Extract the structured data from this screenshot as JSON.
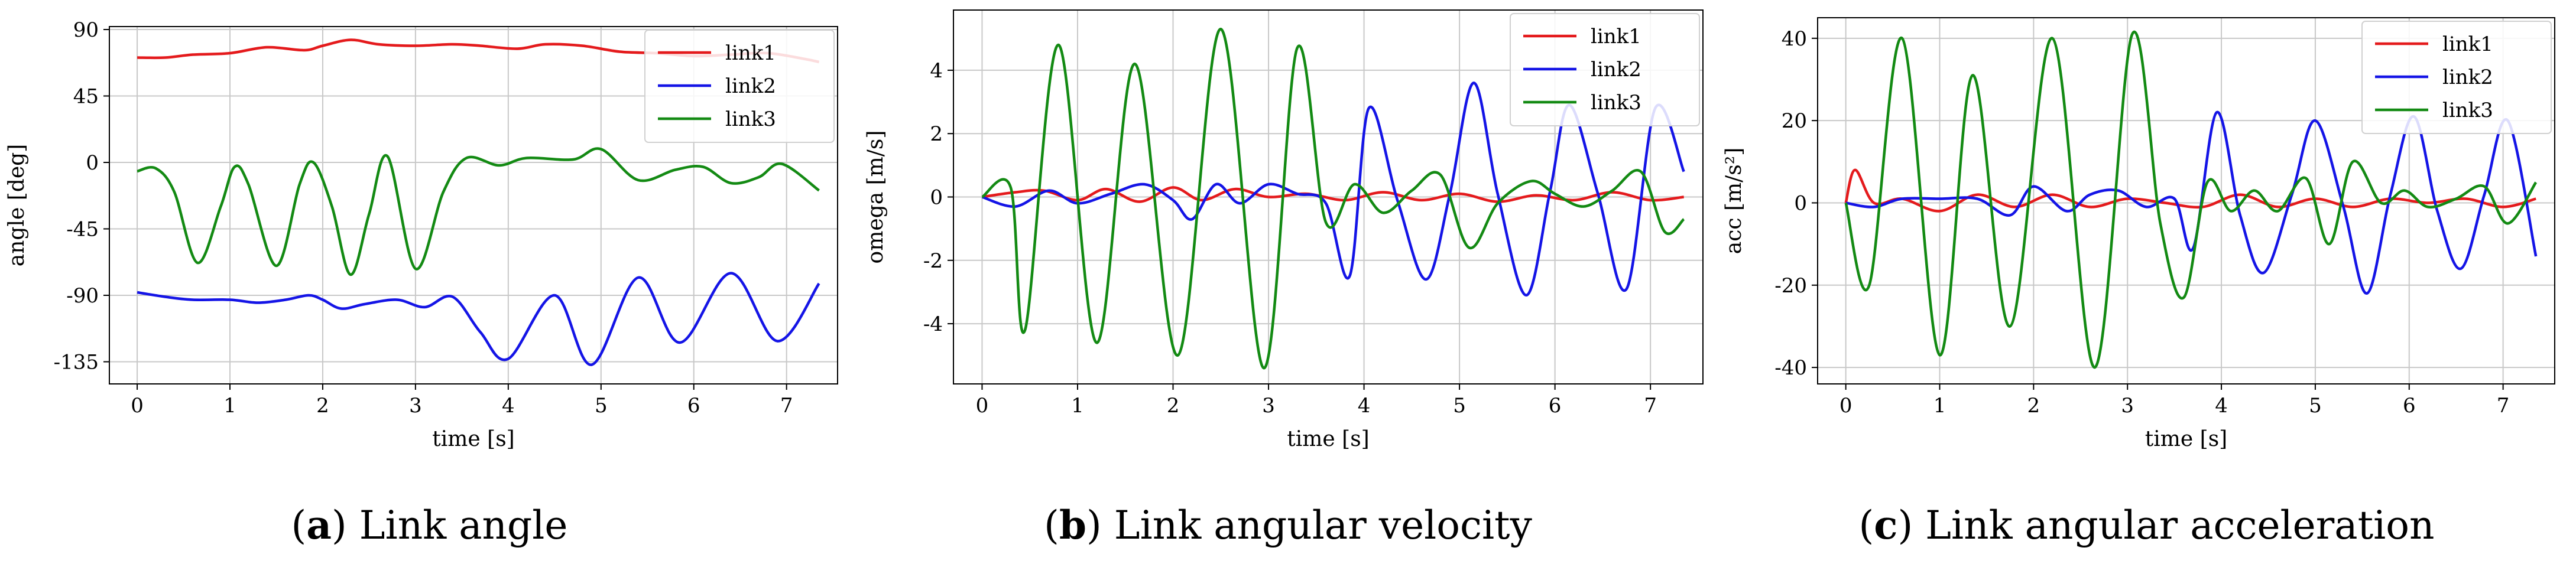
{
  "colors": {
    "link1": "#e41a1c",
    "link2": "#1414e6",
    "link3": "#138a13"
  },
  "chart_data": [
    {
      "type": "line",
      "caption_tag": "a",
      "caption_text": "Link angle",
      "xlabel": "time [s]",
      "ylabel": "angle [deg]",
      "xlim": [
        -0.3,
        7.55
      ],
      "ylim": [
        -150,
        92
      ],
      "xticks": [
        0,
        1,
        2,
        3,
        4,
        5,
        6,
        7
      ],
      "yticks": [
        90,
        45,
        0,
        -45,
        -90,
        -135
      ],
      "grid": true,
      "legend_position": "top-right",
      "series": [
        {
          "name": "link1",
          "x": [
            0,
            0.3,
            0.6,
            1.0,
            1.4,
            1.8,
            2.0,
            2.3,
            2.6,
            3.0,
            3.4,
            3.7,
            4.1,
            4.4,
            4.8,
            5.2,
            5.6,
            6.0,
            6.4,
            6.8,
            7.2,
            7.35
          ],
          "y": [
            71,
            71,
            73,
            74,
            78,
            76,
            79,
            83,
            80,
            79,
            80,
            79,
            77,
            80,
            79,
            75,
            74,
            72,
            73,
            74,
            70,
            68
          ]
        },
        {
          "name": "link2",
          "x": [
            0,
            0.3,
            0.6,
            1.0,
            1.3,
            1.6,
            1.85,
            2.0,
            2.2,
            2.45,
            2.8,
            3.1,
            3.4,
            3.7,
            4.0,
            4.5,
            4.9,
            5.4,
            5.85,
            6.4,
            6.9,
            7.35
          ],
          "y": [
            -88,
            -91,
            -93,
            -93,
            -95,
            -93,
            -90,
            -93,
            -99,
            -96,
            -93,
            -98,
            -91,
            -115,
            -133,
            -90,
            -137,
            -78,
            -122,
            -75,
            -121,
            -82
          ]
        },
        {
          "name": "link3",
          "x": [
            0,
            0.2,
            0.4,
            0.65,
            0.9,
            1.05,
            1.2,
            1.5,
            1.75,
            1.9,
            2.1,
            2.3,
            2.5,
            2.7,
            3.0,
            3.3,
            3.55,
            3.9,
            4.2,
            4.7,
            5.0,
            5.4,
            5.8,
            6.1,
            6.4,
            6.7,
            6.95,
            7.35
          ],
          "y": [
            -6,
            -4,
            -20,
            -68,
            -30,
            -3,
            -15,
            -70,
            -15,
            0,
            -30,
            -76,
            -35,
            4,
            -72,
            -20,
            3,
            -2,
            3,
            2,
            9,
            -12,
            -5,
            -3,
            -14,
            -10,
            -1,
            -19
          ]
        }
      ]
    },
    {
      "type": "line",
      "caption_tag": "b",
      "caption_text": "Link angular velocity",
      "xlabel": "time [s]",
      "ylabel": "omega [m/s]",
      "xlim": [
        -0.3,
        7.55
      ],
      "ylim": [
        -5.9,
        5.9
      ],
      "xticks": [
        0,
        1,
        2,
        3,
        4,
        5,
        6,
        7
      ],
      "yticks": [
        4,
        2,
        0,
        -2,
        -4
      ],
      "grid": true,
      "legend_position": "top-right",
      "series": [
        {
          "name": "link1",
          "x": [
            0,
            0.35,
            0.65,
            1.0,
            1.3,
            1.65,
            2.0,
            2.3,
            2.65,
            3.0,
            3.4,
            3.8,
            4.2,
            4.6,
            5.0,
            5.4,
            5.8,
            6.2,
            6.6,
            7.0,
            7.35
          ],
          "y": [
            0,
            0.15,
            0.2,
            -0.1,
            0.25,
            -0.15,
            0.3,
            -0.1,
            0.25,
            0.0,
            0.1,
            -0.1,
            0.15,
            -0.1,
            0.1,
            -0.15,
            0.05,
            -0.1,
            0.15,
            -0.1,
            0.0
          ]
        },
        {
          "name": "link2",
          "x": [
            0,
            0.35,
            0.7,
            1.0,
            1.35,
            1.7,
            2.0,
            2.2,
            2.45,
            2.7,
            3.0,
            3.3,
            3.6,
            3.85,
            4.05,
            4.35,
            4.65,
            4.9,
            5.15,
            5.4,
            5.7,
            5.95,
            6.15,
            6.45,
            6.75,
            7.05,
            7.35
          ],
          "y": [
            0,
            -0.3,
            0.2,
            -0.2,
            0.1,
            0.4,
            -0.1,
            -0.7,
            0.4,
            -0.2,
            0.4,
            0.1,
            -0.2,
            -2.5,
            2.8,
            -0.1,
            -2.6,
            0.1,
            3.6,
            0.1,
            -3.1,
            0.2,
            2.9,
            0.1,
            -2.9,
            2.8,
            0.8
          ]
        },
        {
          "name": "link3",
          "x": [
            0,
            0.3,
            0.45,
            0.8,
            1.2,
            1.6,
            2.05,
            2.5,
            2.95,
            3.3,
            3.6,
            3.9,
            4.2,
            4.5,
            4.8,
            5.1,
            5.4,
            5.75,
            6.0,
            6.3,
            6.6,
            6.9,
            7.15,
            7.35
          ],
          "y": [
            0,
            0.3,
            -4.2,
            4.8,
            -4.6,
            4.2,
            -5.0,
            5.3,
            -5.4,
            4.7,
            -0.8,
            0.4,
            -0.5,
            0.2,
            0.7,
            -1.6,
            -0.2,
            0.5,
            0.1,
            -0.3,
            0.2,
            0.8,
            -1.1,
            -0.7
          ]
        }
      ]
    },
    {
      "type": "line",
      "caption_tag": "c",
      "caption_text": "Link angular acceleration",
      "xlabel": "time [s]",
      "ylabel": "acc [m/s²]",
      "xlim": [
        -0.3,
        7.55
      ],
      "ylim": [
        -44,
        45
      ],
      "xticks": [
        0,
        1,
        2,
        3,
        4,
        5,
        6,
        7
      ],
      "yticks": [
        40,
        20,
        0,
        -20,
        -40
      ],
      "grid": true,
      "legend_position": "top-right",
      "series": [
        {
          "name": "link1",
          "x": [
            0,
            0.1,
            0.3,
            0.6,
            1.0,
            1.4,
            1.8,
            2.2,
            2.6,
            3.0,
            3.4,
            3.8,
            4.2,
            4.6,
            5.0,
            5.4,
            5.8,
            6.2,
            6.6,
            7.0,
            7.35
          ],
          "y": [
            0,
            8,
            0,
            1,
            -2,
            2,
            -1,
            2,
            -1,
            1,
            0,
            -1,
            2,
            -1,
            1,
            -1,
            1,
            0,
            1,
            -1,
            1
          ]
        },
        {
          "name": "link2",
          "x": [
            0,
            0.3,
            0.6,
            1.0,
            1.4,
            1.75,
            2.0,
            2.35,
            2.6,
            2.9,
            3.2,
            3.5,
            3.7,
            3.95,
            4.2,
            4.45,
            4.75,
            5.0,
            5.3,
            5.55,
            5.8,
            6.05,
            6.3,
            6.55,
            6.8,
            7.05,
            7.35
          ],
          "y": [
            0,
            -1,
            1,
            1,
            1,
            -3,
            4,
            -2,
            2,
            3,
            -1,
            1,
            -11,
            22,
            -3,
            -17,
            2,
            20,
            -1,
            -22,
            2,
            21,
            -2,
            -16,
            2,
            20,
            -13
          ]
        },
        {
          "name": "link3",
          "x": [
            0,
            0.25,
            0.6,
            1.0,
            1.35,
            1.75,
            2.2,
            2.65,
            3.05,
            3.35,
            3.6,
            3.85,
            4.1,
            4.35,
            4.6,
            4.9,
            5.15,
            5.4,
            5.7,
            5.95,
            6.2,
            6.5,
            6.8,
            7.05,
            7.35
          ],
          "y": [
            0,
            -20,
            40,
            -37,
            31,
            -30,
            40,
            -40,
            41,
            -5,
            -23,
            5,
            -2,
            3,
            -2,
            6,
            -10,
            10,
            0,
            3,
            -1,
            1,
            4,
            -5,
            5
          ]
        }
      ]
    }
  ]
}
